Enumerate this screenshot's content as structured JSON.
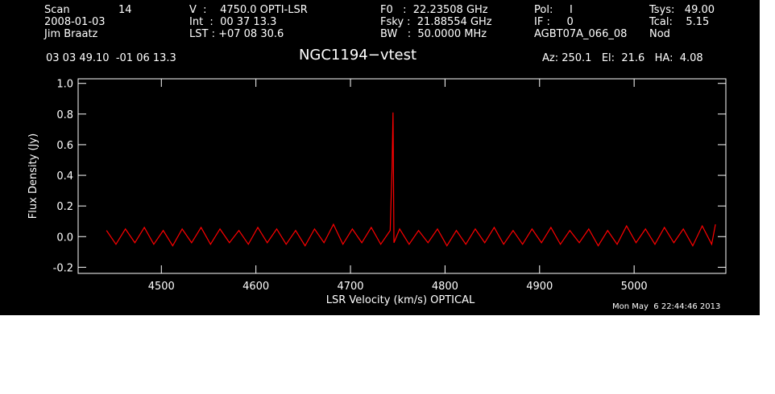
{
  "header": {
    "scan_label": "Scan",
    "scan": "14",
    "date": "2008-01-03",
    "observer": "Jim Braatz",
    "coords": "03 03 49.10  -01 06 13.3",
    "velocity": "V  :    4750.0 OPTI-LSR",
    "int": "Int  :  00 37 13.3",
    "lst": "LST : +07 08 30.6",
    "f0": "F0   :  22.23508 GHz",
    "fsky": "Fsky :  21.88554 GHz",
    "bw": "BW   :  50.0000 MHz",
    "pol": "Pol:     I",
    "if": "IF :     0",
    "project": "AGBT07A_066_08",
    "tsys": "Tsys:   49.00",
    "tcal": "Tcal:    5.15",
    "proc": "Nod",
    "pointing": "Az: 250.1   El:  21.6   HA:  4.08",
    "timestamp": "Mon May  6 22:44:46 2013"
  },
  "chart_data": {
    "type": "line",
    "title": "NGC1194−vtest",
    "x_label": "LSR Velocity (km/s) OPTICAL",
    "y_label": "Flux Density (Jy)",
    "xlim": [
      4412,
      5097
    ],
    "ylim": [
      -0.24,
      1.03
    ],
    "xticks": [
      4500,
      4600,
      4700,
      4800,
      4900,
      5000
    ],
    "yticks": [
      -0.2,
      {
        "value": 0,
        "label": "0.0"
      },
      0.2,
      0.4,
      0.6,
      0.8,
      {
        "value": 1,
        "label": "1.0"
      }
    ],
    "series": [
      {
        "color": "#ff0000",
        "x": [
          4442,
          4452,
          4462,
          4472,
          4482,
          4492,
          4502,
          4512,
          4522,
          4532,
          4542,
          4552,
          4562,
          4572,
          4582,
          4592,
          4602,
          4612,
          4622,
          4632,
          4642,
          4652,
          4662,
          4672,
          4682,
          4692,
          4702,
          4712,
          4722,
          4732,
          4742,
          4744,
          4745,
          4746,
          4752,
          4762,
          4772,
          4782,
          4792,
          4802,
          4812,
          4822,
          4832,
          4842,
          4852,
          4862,
          4872,
          4882,
          4892,
          4902,
          4912,
          4922,
          4932,
          4942,
          4952,
          4962,
          4972,
          4982,
          4992,
          5002,
          5012,
          5022,
          5032,
          5042,
          5052,
          5062,
          5072,
          5082,
          5086
        ],
        "values": [
          0.04,
          -0.05,
          0.05,
          -0.04,
          0.06,
          -0.05,
          0.04,
          -0.06,
          0.05,
          -0.04,
          0.06,
          -0.05,
          0.05,
          -0.04,
          0.04,
          -0.05,
          0.06,
          -0.04,
          0.05,
          -0.05,
          0.04,
          -0.06,
          0.05,
          -0.04,
          0.08,
          -0.05,
          0.05,
          -0.04,
          0.06,
          -0.05,
          0.04,
          0.45,
          0.81,
          -0.04,
          0.05,
          -0.05,
          0.04,
          -0.04,
          0.05,
          -0.06,
          0.04,
          -0.05,
          0.05,
          -0.04,
          0.06,
          -0.05,
          0.04,
          -0.05,
          0.05,
          -0.04,
          0.06,
          -0.05,
          0.04,
          -0.04,
          0.05,
          -0.06,
          0.04,
          -0.05,
          0.07,
          -0.04,
          0.05,
          -0.05,
          0.06,
          -0.04,
          0.05,
          -0.06,
          0.07,
          -0.05,
          0.08
        ]
      }
    ]
  }
}
